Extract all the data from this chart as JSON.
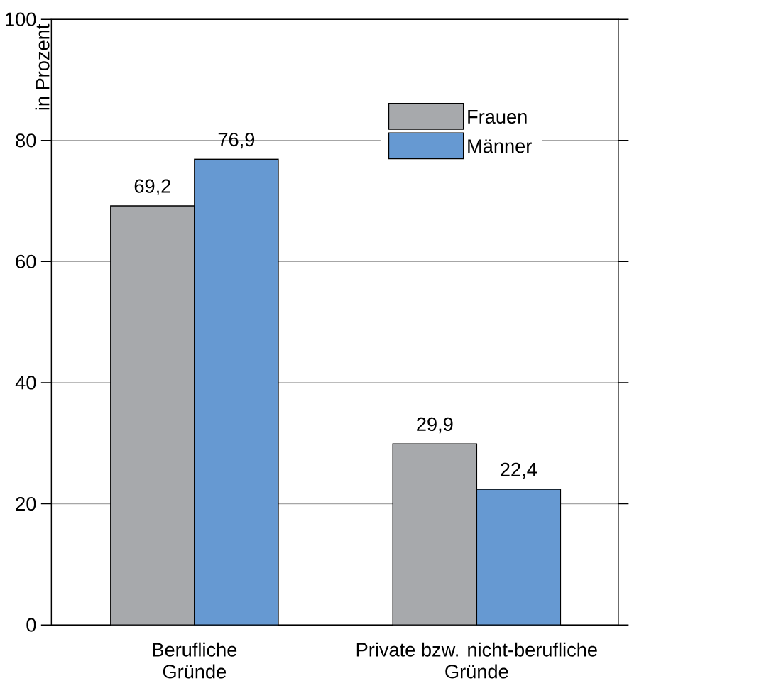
{
  "chart_data": {
    "type": "bar",
    "ylabel": "in Prozent",
    "categories": [
      "Berufliche Gründe",
      "Private bzw. nicht-berufliche Gründe"
    ],
    "series": [
      {
        "name": "Frauen",
        "color": "#a7a9ac",
        "values": [
          69.2,
          29.9
        ],
        "value_labels": [
          "69,2",
          "29,9"
        ]
      },
      {
        "name": "Männer",
        "color": "#6699d2",
        "values": [
          76.9,
          22.4
        ],
        "value_labels": [
          "76,9",
          "22,4"
        ]
      }
    ],
    "ylim": [
      0,
      100
    ],
    "yticks": [
      0,
      20,
      40,
      60,
      80,
      100
    ],
    "grid": "y",
    "legend": "top right"
  }
}
